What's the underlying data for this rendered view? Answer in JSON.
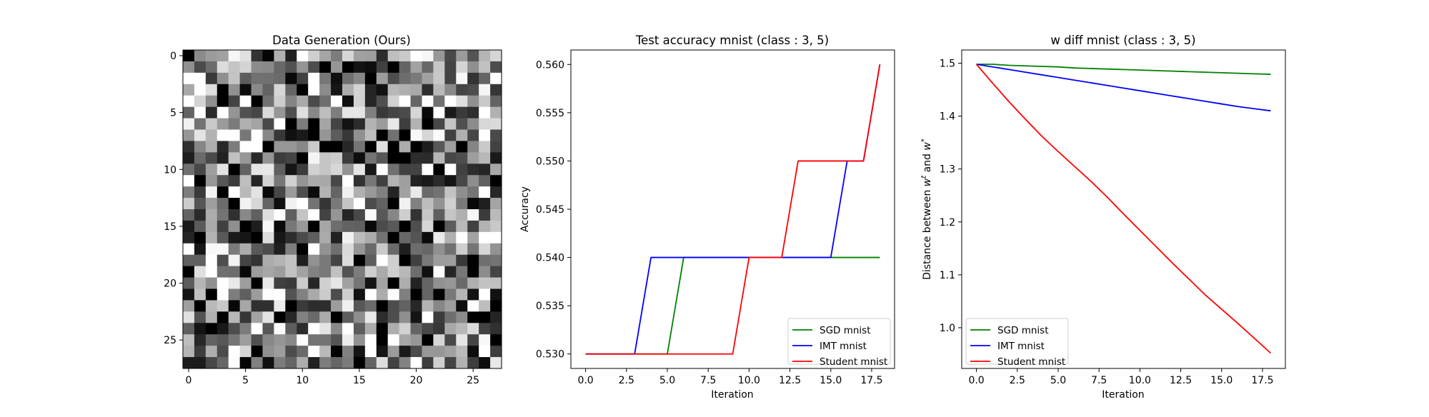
{
  "chart_data": [
    {
      "type": "heatmap",
      "title": "Data Generation (Ours)",
      "xlabel": "",
      "ylabel": "",
      "xlim": [
        -0.5,
        27.5
      ],
      "ylim": [
        27.5,
        -0.5
      ],
      "xticks": [
        0,
        5,
        10,
        15,
        20,
        25
      ],
      "yticks": [
        0,
        5,
        10,
        15,
        20,
        25
      ],
      "colormap": "gray",
      "rows": 28,
      "cols": 28,
      "seed": 12345
    },
    {
      "type": "line",
      "title": "Test accuracy mnist (class : 3, 5)",
      "xlabel": "Iteration",
      "ylabel": "Accuracy",
      "xlim": [
        -0.9,
        18.9
      ],
      "ylim": [
        0.5285,
        0.5615
      ],
      "xticks": [
        0.0,
        2.5,
        5.0,
        7.5,
        10.0,
        12.5,
        15.0,
        17.5
      ],
      "xtick_labels": [
        "0.0",
        "2.5",
        "5.0",
        "7.5",
        "10.0",
        "12.5",
        "15.0",
        "17.5"
      ],
      "yticks": [
        0.53,
        0.535,
        0.54,
        0.545,
        0.55,
        0.555,
        0.56
      ],
      "ytick_labels": [
        "0.530",
        "0.535",
        "0.540",
        "0.545",
        "0.550",
        "0.555",
        "0.560"
      ],
      "legend_position": "lower-right",
      "x": [
        0,
        1,
        2,
        3,
        4,
        5,
        6,
        7,
        8,
        9,
        10,
        11,
        12,
        13,
        14,
        15,
        16,
        17,
        18
      ],
      "series": [
        {
          "name": "SGD mnist",
          "color": "#008000",
          "values": [
            0.53,
            0.53,
            0.53,
            0.53,
            0.53,
            0.53,
            0.54,
            0.54,
            0.54,
            0.54,
            0.54,
            0.54,
            0.54,
            0.54,
            0.54,
            0.54,
            0.54,
            0.54,
            0.54
          ]
        },
        {
          "name": "IMT mnist",
          "color": "#0000ff",
          "values": [
            0.53,
            0.53,
            0.53,
            0.53,
            0.54,
            0.54,
            0.54,
            0.54,
            0.54,
            0.54,
            0.54,
            0.54,
            0.54,
            0.54,
            0.54,
            0.54,
            0.55,
            0.55,
            0.56
          ]
        },
        {
          "name": "Student mnist",
          "color": "#ff0000",
          "values": [
            0.53,
            0.53,
            0.53,
            0.53,
            0.53,
            0.53,
            0.53,
            0.53,
            0.53,
            0.53,
            0.54,
            0.54,
            0.54,
            0.55,
            0.55,
            0.55,
            0.55,
            0.55,
            0.56
          ]
        }
      ]
    },
    {
      "type": "line",
      "title": "w diff mnist (class : 3, 5)",
      "xlabel": "Iteration",
      "ylabel": "Distance between w^t and w^*",
      "ylabel_parts": [
        "Distance between ",
        "w",
        "t",
        " and ",
        "w",
        "*"
      ],
      "xlim": [
        -0.9,
        18.9
      ],
      "ylim": [
        0.923,
        1.525
      ],
      "xticks": [
        0.0,
        2.5,
        5.0,
        7.5,
        10.0,
        12.5,
        15.0,
        17.5
      ],
      "xtick_labels": [
        "0.0",
        "2.5",
        "5.0",
        "7.5",
        "10.0",
        "12.5",
        "15.0",
        "17.5"
      ],
      "yticks": [
        1.0,
        1.1,
        1.2,
        1.3,
        1.4,
        1.5
      ],
      "ytick_labels": [
        "1.0",
        "1.1",
        "1.2",
        "1.3",
        "1.4",
        "1.5"
      ],
      "legend_position": "lower-left",
      "x": [
        0,
        1,
        2,
        3,
        4,
        5,
        6,
        7,
        8,
        9,
        10,
        11,
        12,
        13,
        14,
        15,
        16,
        17,
        18
      ],
      "series": [
        {
          "name": "SGD mnist",
          "color": "#008000",
          "values": [
            1.498,
            1.498,
            1.496,
            1.495,
            1.494,
            1.493,
            1.491,
            1.49,
            1.489,
            1.488,
            1.487,
            1.486,
            1.485,
            1.484,
            1.483,
            1.482,
            1.481,
            1.48,
            1.479
          ]
        },
        {
          "name": "IMT mnist",
          "color": "#0000ff",
          "values": [
            1.498,
            1.493,
            1.488,
            1.483,
            1.478,
            1.473,
            1.468,
            1.463,
            1.458,
            1.453,
            1.448,
            1.443,
            1.438,
            1.433,
            1.428,
            1.423,
            1.418,
            1.414,
            1.41
          ]
        },
        {
          "name": "Student mnist",
          "color": "#ff0000",
          "values": [
            1.498,
            1.462,
            1.427,
            1.394,
            1.362,
            1.333,
            1.305,
            1.277,
            1.247,
            1.215,
            1.184,
            1.153,
            1.122,
            1.092,
            1.062,
            1.035,
            1.008,
            0.98,
            0.952
          ]
        }
      ]
    }
  ]
}
